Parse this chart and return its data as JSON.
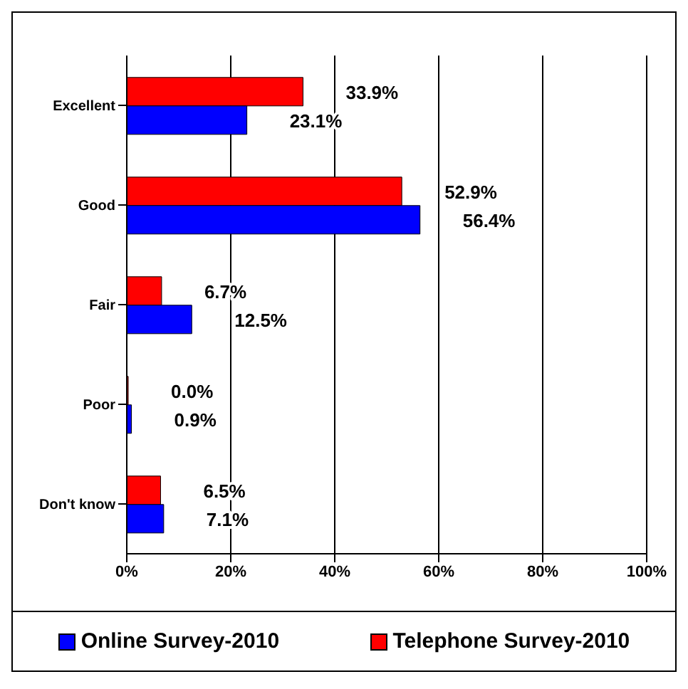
{
  "chart_data": {
    "type": "bar",
    "orientation": "horizontal",
    "categories": [
      "Excellent",
      "Good",
      "Fair",
      "Poor",
      "Don't know"
    ],
    "series": [
      {
        "name": "Online Survey-2010",
        "color": "#0000ff",
        "values": [
          23.1,
          56.4,
          12.5,
          0.9,
          7.1
        ],
        "value_labels": [
          "23.1%",
          "56.4%",
          "12.5%",
          "0.9%",
          "7.1%"
        ]
      },
      {
        "name": "Telephone Survey-2010",
        "color": "#ff0000",
        "values": [
          33.9,
          52.9,
          6.7,
          0.0,
          6.5
        ],
        "value_labels": [
          "33.9%",
          "52.9%",
          "6.7%",
          "0.0%",
          "6.5%"
        ]
      }
    ],
    "xlim": [
      0,
      100
    ],
    "xticks": [
      {
        "value": 0,
        "label": "0%"
      },
      {
        "value": 20,
        "label": "20%"
      },
      {
        "value": 40,
        "label": "40%"
      },
      {
        "value": 60,
        "label": "60%"
      },
      {
        "value": 80,
        "label": "80%"
      },
      {
        "value": 100,
        "label": "100%"
      }
    ],
    "grid": "x",
    "legend": "bottom"
  }
}
